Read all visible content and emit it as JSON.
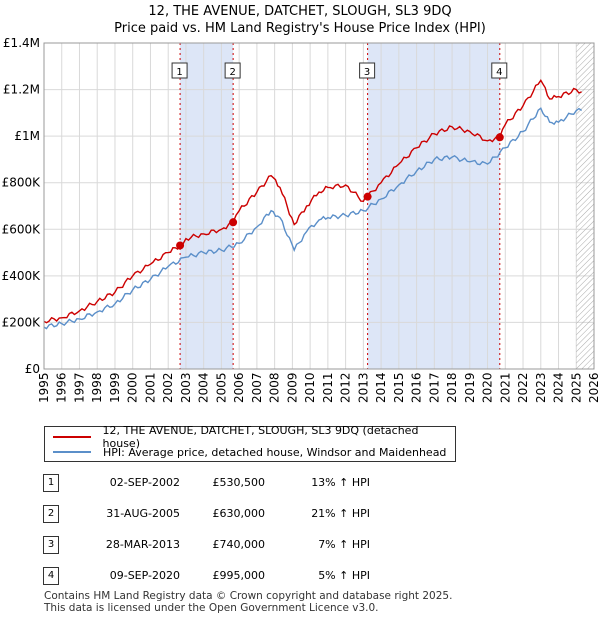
{
  "title_line1": "12, THE AVENUE, DATCHET, SLOUGH, SL3 9DQ",
  "title_line2": "Price paid vs. HM Land Registry's House Price Index (HPI)",
  "colors": {
    "property": "#cc0000",
    "hpi": "#5b8fc9",
    "band": "#dde6f7",
    "sale_line": "#cc0000"
  },
  "chart_data": {
    "type": "line",
    "title": "Price paid vs. HM Land Registry's House Price Index (HPI)",
    "ylim": [
      0,
      1400000
    ],
    "xlim": [
      1995,
      2026
    ],
    "y_ticks": [
      {
        "value": 0,
        "label": "£0"
      },
      {
        "value": 200000,
        "label": "£200K"
      },
      {
        "value": 400000,
        "label": "£400K"
      },
      {
        "value": 600000,
        "label": "£600K"
      },
      {
        "value": 800000,
        "label": "£800K"
      },
      {
        "value": 1000000,
        "label": "£1M"
      },
      {
        "value": 1200000,
        "label": "£1.2M"
      },
      {
        "value": 1400000,
        "label": "£1.4M"
      }
    ],
    "x_ticks": [
      "1995",
      "1996",
      "1997",
      "1998",
      "1999",
      "2000",
      "2001",
      "2002",
      "2003",
      "2004",
      "2005",
      "2006",
      "2007",
      "2008",
      "2009",
      "2010",
      "2011",
      "2012",
      "2013",
      "2014",
      "2015",
      "2016",
      "2017",
      "2018",
      "2019",
      "2020",
      "2021",
      "2022",
      "2023",
      "2024",
      "2025",
      "2026"
    ],
    "shaded_ranges": [
      [
        2002.67,
        2005.66
      ],
      [
        2013.24,
        2020.69
      ]
    ],
    "hatched_from": 2025.0,
    "series": [
      {
        "name": "12, THE AVENUE, DATCHET, SLOUGH, SL3 9DQ (detached house)",
        "x": [
          1995,
          1996,
          1997,
          1998,
          1999,
          2000,
          2001,
          2002,
          2002.67,
          2003,
          2004,
          2005,
          2005.66,
          2006,
          2007,
          2007.8,
          2008.3,
          2009.1,
          2009.8,
          2010.5,
          2011,
          2012,
          2013,
          2013.24,
          2014,
          2015,
          2016,
          2017,
          2018,
          2019,
          2020,
          2020.69,
          2021,
          2022,
          2023,
          2023.5,
          2024,
          2025,
          2025.3
        ],
        "y": [
          205000,
          220000,
          250000,
          290000,
          330000,
          400000,
          450000,
          500000,
          530500,
          560000,
          580000,
          600000,
          630000,
          680000,
          760000,
          830000,
          780000,
          620000,
          700000,
          760000,
          780000,
          790000,
          720000,
          740000,
          800000,
          880000,
          950000,
          1010000,
          1040000,
          1020000,
          980000,
          995000,
          1050000,
          1130000,
          1240000,
          1160000,
          1170000,
          1200000,
          1190000
        ]
      },
      {
        "name": "HPI: Average price, detached house, Windsor and Maidenhead",
        "x": [
          1995,
          1996,
          1997,
          1998,
          1999,
          2000,
          2001,
          2002,
          2003,
          2004,
          2005,
          2006,
          2007,
          2007.8,
          2008.3,
          2009.1,
          2009.8,
          2010.5,
          2011,
          2012,
          2013,
          2014,
          2015,
          2016,
          2017,
          2018,
          2019,
          2020,
          2021,
          2022,
          2023,
          2023.5,
          2024,
          2025,
          2025.3
        ],
        "y": [
          180000,
          195000,
          215000,
          245000,
          280000,
          340000,
          385000,
          440000,
          480000,
          500000,
          510000,
          540000,
          610000,
          680000,
          650000,
          510000,
          590000,
          640000,
          650000,
          660000,
          680000,
          730000,
          790000,
          850000,
          900000,
          910000,
          890000,
          880000,
          950000,
          1020000,
          1120000,
          1060000,
          1060000,
          1110000,
          1110000
        ]
      }
    ],
    "sales": [
      {
        "label": "1",
        "x": 2002.67,
        "y": 530500
      },
      {
        "label": "2",
        "x": 2005.66,
        "y": 630000
      },
      {
        "label": "3",
        "x": 2013.24,
        "y": 740000
      },
      {
        "label": "4",
        "x": 2020.69,
        "y": 995000
      }
    ]
  },
  "legend": {
    "property_label": "12, THE AVENUE, DATCHET, SLOUGH, SL3 9DQ (detached house)",
    "hpi_label": "HPI: Average price, detached house, Windsor and Maidenhead"
  },
  "table": [
    {
      "num": "1",
      "date": "02-SEP-2002",
      "price": "£530,500",
      "hpi": "13% ↑ HPI"
    },
    {
      "num": "2",
      "date": "31-AUG-2005",
      "price": "£630,000",
      "hpi": "21% ↑ HPI"
    },
    {
      "num": "3",
      "date": "28-MAR-2013",
      "price": "£740,000",
      "hpi": "7% ↑ HPI"
    },
    {
      "num": "4",
      "date": "09-SEP-2020",
      "price": "£995,000",
      "hpi": "5% ↑ HPI"
    }
  ],
  "footer_line1": "Contains HM Land Registry data © Crown copyright and database right 2025.",
  "footer_line2": "This data is licensed under the Open Government Licence v3.0."
}
